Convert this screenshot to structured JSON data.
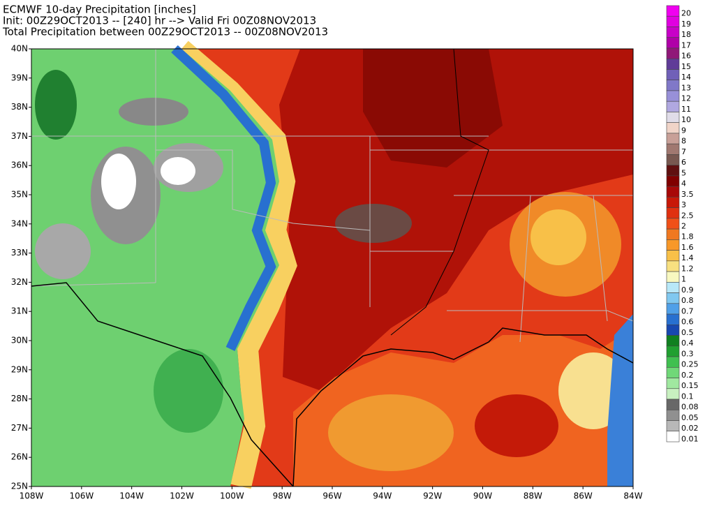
{
  "header": {
    "lines": [
      "ECMWF 10-day Precipitation [inches]",
      "Init: 00Z29OCT2013 -- [240] hr --> Valid Fri 00Z08NOV2013",
      "Total Precipitation between 00Z29OCT2013 -- 00Z08NOV2013"
    ]
  },
  "map": {
    "lat_labels": [
      "40N",
      "39N",
      "38N",
      "37N",
      "36N",
      "35N",
      "34N",
      "33N",
      "32N",
      "31N",
      "30N",
      "29N",
      "28N",
      "27N",
      "26N",
      "25N"
    ],
    "lon_labels": [
      "108W",
      "106W",
      "104W",
      "102W",
      "100W",
      "98W",
      "96W",
      "94W",
      "92W",
      "90W",
      "88W",
      "86W",
      "84W"
    ]
  },
  "legend": {
    "items": [
      {
        "label": "20",
        "color": "#f000f0"
      },
      {
        "label": "19",
        "color": "#e000e0"
      },
      {
        "label": "18",
        "color": "#c800c8"
      },
      {
        "label": "17",
        "color": "#b000a8"
      },
      {
        "label": "16",
        "color": "#901878"
      },
      {
        "label": "15",
        "color": "#603c98"
      },
      {
        "label": "14",
        "color": "#7060b8"
      },
      {
        "label": "13",
        "color": "#8078c8"
      },
      {
        "label": "12",
        "color": "#9890d8"
      },
      {
        "label": "11",
        "color": "#b0a8e0"
      },
      {
        "label": "10",
        "color": "#e0dce8"
      },
      {
        "label": "9",
        "color": "#f0d4c8"
      },
      {
        "label": "8",
        "color": "#c8a098"
      },
      {
        "label": "7",
        "color": "#a07870"
      },
      {
        "label": "6",
        "color": "#785850"
      },
      {
        "label": "5",
        "color": "#601010"
      },
      {
        "label": "4",
        "color": "#800000"
      },
      {
        "label": "3.5",
        "color": "#a80808"
      },
      {
        "label": "3",
        "color": "#c81808"
      },
      {
        "label": "2.5",
        "color": "#e03010"
      },
      {
        "label": "2",
        "color": "#f05018"
      },
      {
        "label": "1.8",
        "color": "#f07820"
      },
      {
        "label": "1.6",
        "color": "#f89828"
      },
      {
        "label": "1.4",
        "color": "#f8c048"
      },
      {
        "label": "1.2",
        "color": "#f8e080"
      },
      {
        "label": "1",
        "color": "#f8f8c0"
      },
      {
        "label": "0.9",
        "color": "#b8e8f8"
      },
      {
        "label": "0.8",
        "color": "#80c8f0"
      },
      {
        "label": "0.7",
        "color": "#50a0e8"
      },
      {
        "label": "0.6",
        "color": "#2870d0"
      },
      {
        "label": "0.5",
        "color": "#1848b0"
      },
      {
        "label": "0.4",
        "color": "#108020"
      },
      {
        "label": "0.3",
        "color": "#20a030"
      },
      {
        "label": "0.25",
        "color": "#40c050"
      },
      {
        "label": "0.2",
        "color": "#70d878"
      },
      {
        "label": "0.15",
        "color": "#a0e8a0"
      },
      {
        "label": "0.1",
        "color": "#c8f0c0"
      },
      {
        "label": "0.08",
        "color": "#686868"
      },
      {
        "label": "0.05",
        "color": "#909090"
      },
      {
        "label": "0.02",
        "color": "#b8b8b8"
      },
      {
        "label": "0.01",
        "color": "#ffffff"
      }
    ]
  }
}
